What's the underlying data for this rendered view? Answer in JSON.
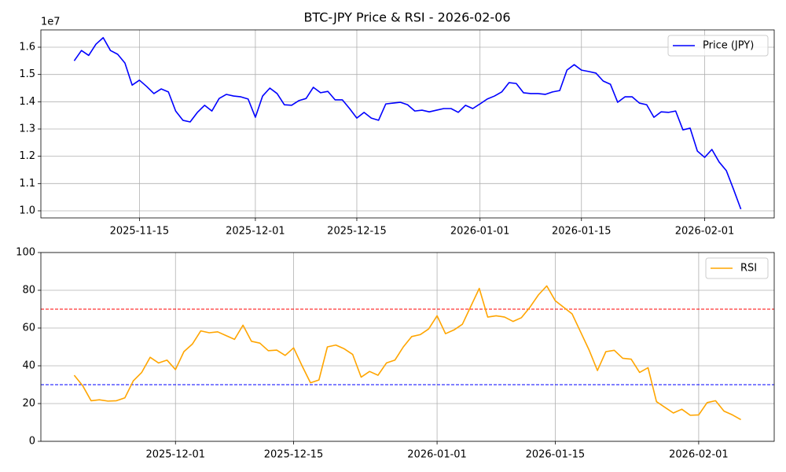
{
  "chart_data": [
    {
      "type": "line",
      "title": "BTC-JPY Price & RSI - 2026-02-06",
      "y_offset_label": "1e7",
      "x": [
        "2025-11-06",
        "2025-11-07",
        "2025-11-08",
        "2025-11-09",
        "2025-11-10",
        "2025-11-11",
        "2025-11-12",
        "2025-11-13",
        "2025-11-14",
        "2025-11-15",
        "2025-11-16",
        "2025-11-17",
        "2025-11-18",
        "2025-11-19",
        "2025-11-20",
        "2025-11-21",
        "2025-11-22",
        "2025-11-23",
        "2025-11-24",
        "2025-11-25",
        "2025-11-26",
        "2025-11-27",
        "2025-11-28",
        "2025-11-29",
        "2025-11-30",
        "2025-12-01",
        "2025-12-02",
        "2025-12-03",
        "2025-12-04",
        "2025-12-05",
        "2025-12-06",
        "2025-12-07",
        "2025-12-08",
        "2025-12-09",
        "2025-12-10",
        "2025-12-11",
        "2025-12-12",
        "2025-12-13",
        "2025-12-14",
        "2025-12-15",
        "2025-12-16",
        "2025-12-17",
        "2025-12-18",
        "2025-12-19",
        "2025-12-20",
        "2025-12-21",
        "2025-12-22",
        "2025-12-23",
        "2025-12-24",
        "2025-12-25",
        "2025-12-26",
        "2025-12-27",
        "2025-12-28",
        "2025-12-29",
        "2025-12-30",
        "2025-12-31",
        "2026-01-01",
        "2026-01-02",
        "2026-01-03",
        "2026-01-04",
        "2026-01-05",
        "2026-01-06",
        "2026-01-07",
        "2026-01-08",
        "2026-01-09",
        "2026-01-10",
        "2026-01-11",
        "2026-01-12",
        "2026-01-13",
        "2026-01-14",
        "2026-01-15",
        "2026-01-16",
        "2026-01-17",
        "2026-01-18",
        "2026-01-19",
        "2026-01-20",
        "2026-01-21",
        "2026-01-22",
        "2026-01-23",
        "2026-01-24",
        "2026-01-25",
        "2026-01-26",
        "2026-01-27",
        "2026-01-28",
        "2026-01-29",
        "2026-01-30",
        "2026-01-31",
        "2026-02-01",
        "2026-02-02",
        "2026-02-03",
        "2026-02-04",
        "2026-02-05",
        "2026-02-06"
      ],
      "series": [
        {
          "name": "Price (JPY)",
          "color": "#0000ff",
          "values": [
            15500000,
            15880000,
            15700000,
            16110000,
            16350000,
            15880000,
            15740000,
            15420000,
            14610000,
            14790000,
            14560000,
            14300000,
            14470000,
            14360000,
            13660000,
            13320000,
            13260000,
            13610000,
            13870000,
            13660000,
            14120000,
            14270000,
            14210000,
            14180000,
            14100000,
            13430000,
            14210000,
            14500000,
            14300000,
            13890000,
            13870000,
            14040000,
            14120000,
            14530000,
            14330000,
            14380000,
            14070000,
            14070000,
            13750000,
            13400000,
            13610000,
            13400000,
            13320000,
            13920000,
            13950000,
            13980000,
            13890000,
            13660000,
            13690000,
            13630000,
            13690000,
            13750000,
            13750000,
            13610000,
            13870000,
            13750000,
            13920000,
            14100000,
            14210000,
            14360000,
            14700000,
            14670000,
            14330000,
            14300000,
            14300000,
            14270000,
            14360000,
            14410000,
            15160000,
            15360000,
            15160000,
            15110000,
            15050000,
            14760000,
            14640000,
            13980000,
            14180000,
            14180000,
            13950000,
            13890000,
            13430000,
            13630000,
            13610000,
            13660000,
            12970000,
            13030000,
            12190000,
            11960000,
            12250000,
            11790000,
            11470000,
            10780000,
            10060000
          ]
        }
      ],
      "xlim": [
        "2025-11-01T09:36:00Z",
        "2026-02-10T14:24:00Z"
      ],
      "xticks": [
        "2025-11-15",
        "2025-12-01",
        "2025-12-15",
        "2026-01-01",
        "2026-01-15",
        "2026-02-01"
      ],
      "ylim": [
        9740000,
        16635000
      ],
      "yticks": [
        {
          "value": 10000000,
          "label": "1.0"
        },
        {
          "value": 11000000,
          "label": "1.1"
        },
        {
          "value": 12000000,
          "label": "1.2"
        },
        {
          "value": 13000000,
          "label": "1.3"
        },
        {
          "value": 14000000,
          "label": "1.4"
        },
        {
          "value": 15000000,
          "label": "1.5"
        },
        {
          "value": 16000000,
          "label": "1.6"
        }
      ],
      "grid": true,
      "legend": "upper right"
    },
    {
      "type": "line",
      "x": [
        "2025-11-19",
        "2025-11-20",
        "2025-11-21",
        "2025-11-22",
        "2025-11-23",
        "2025-11-24",
        "2025-11-25",
        "2025-11-26",
        "2025-11-27",
        "2025-11-28",
        "2025-11-29",
        "2025-11-30",
        "2025-12-01",
        "2025-12-02",
        "2025-12-03",
        "2025-12-04",
        "2025-12-05",
        "2025-12-06",
        "2025-12-07",
        "2025-12-08",
        "2025-12-09",
        "2025-12-10",
        "2025-12-11",
        "2025-12-12",
        "2025-12-13",
        "2025-12-14",
        "2025-12-15",
        "2025-12-16",
        "2025-12-17",
        "2025-12-18",
        "2025-12-19",
        "2025-12-20",
        "2025-12-21",
        "2025-12-22",
        "2025-12-23",
        "2025-12-24",
        "2025-12-25",
        "2025-12-26",
        "2025-12-27",
        "2025-12-28",
        "2025-12-29",
        "2025-12-30",
        "2025-12-31",
        "2026-01-01",
        "2026-01-02",
        "2026-01-03",
        "2026-01-04",
        "2026-01-05",
        "2026-01-06",
        "2026-01-07",
        "2026-01-08",
        "2026-01-09",
        "2026-01-10",
        "2026-01-11",
        "2026-01-12",
        "2026-01-13",
        "2026-01-14",
        "2026-01-15",
        "2026-01-16",
        "2026-01-17",
        "2026-01-18",
        "2026-01-19",
        "2026-01-20",
        "2026-01-21",
        "2026-01-22",
        "2026-01-23",
        "2026-01-24",
        "2026-01-25",
        "2026-01-26",
        "2026-01-27",
        "2026-01-28",
        "2026-01-29",
        "2026-01-30",
        "2026-01-31",
        "2026-02-01",
        "2026-02-02",
        "2026-02-03",
        "2026-02-04",
        "2026-02-05",
        "2026-02-06"
      ],
      "series": [
        {
          "name": "RSI",
          "color": "#ffa500",
          "values": [
            35,
            29.5,
            21.5,
            22,
            21.3,
            21.5,
            23,
            32,
            36.5,
            44.5,
            41.5,
            43,
            38,
            47.5,
            51.5,
            58.5,
            57.5,
            58,
            56,
            54,
            61.5,
            53,
            52,
            48,
            48.3,
            45.5,
            49.5,
            40,
            31,
            32.5,
            50,
            51,
            49,
            46,
            34,
            37,
            35,
            41.5,
            43,
            50,
            55.5,
            56.5,
            59.5,
            66.5,
            57,
            59,
            62,
            71.5,
            81,
            65.8,
            66.5,
            65.8,
            63.5,
            65.5,
            71,
            77.5,
            82.3,
            74.5,
            71,
            67.5,
            58,
            48.5,
            37.5,
            47.5,
            48.2,
            44,
            43.5,
            36.5,
            39,
            21,
            18,
            15,
            17,
            13.8,
            14,
            20.5,
            21.5,
            16,
            14,
            11.5
          ]
        }
      ],
      "hlines": [
        {
          "value": 70,
          "color": "#ff0000"
        },
        {
          "value": 30,
          "color": "#0000ff"
        }
      ],
      "xlim": [
        "2025-11-15T01:12:00Z",
        "2026-02-09T22:48:00Z"
      ],
      "xticks": [
        "2025-12-01",
        "2025-12-15",
        "2026-01-01",
        "2026-01-15",
        "2026-02-01"
      ],
      "ylim": [
        0,
        100
      ],
      "yticks": [
        0,
        20,
        40,
        60,
        80,
        100
      ],
      "grid": true,
      "legend": "upper right"
    }
  ]
}
